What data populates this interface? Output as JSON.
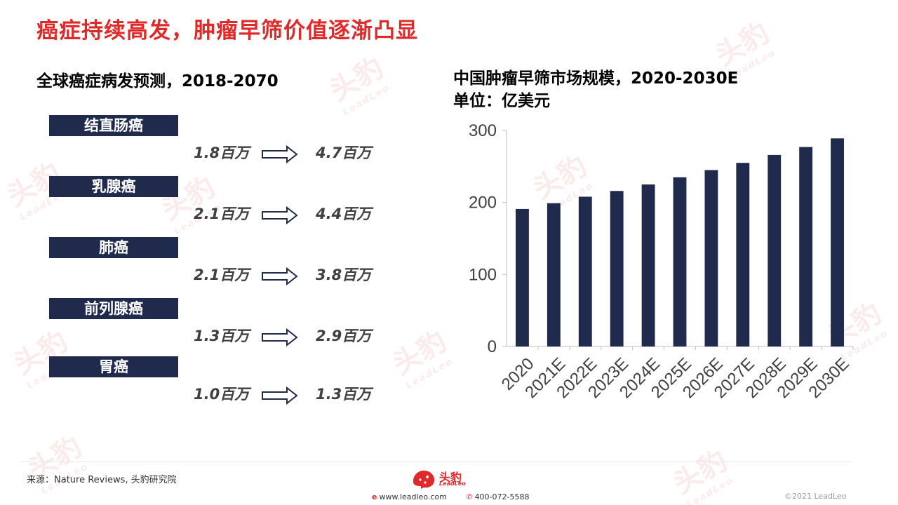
{
  "page": {
    "title": "癌症持续高发，肿瘤早筛价值逐渐凸显"
  },
  "left": {
    "title": "全球癌症病发预测，2018-2070",
    "rows": [
      {
        "label": "结直肠癌",
        "from": "1.8百万",
        "to": "4.7百万"
      },
      {
        "label": "乳腺癌",
        "from": "2.1百万",
        "to": "4.4百万"
      },
      {
        "label": "肺癌",
        "from": "2.1百万",
        "to": "3.8百万"
      },
      {
        "label": "前列腺癌",
        "from": "1.3百万",
        "to": "2.9百万"
      },
      {
        "label": "胃癌",
        "from": "1.0百万",
        "to": "1.3百万"
      }
    ]
  },
  "right": {
    "title_line1": "中国肿瘤早筛市场规模，2020-2030E",
    "title_line2": "单位：亿美元"
  },
  "chart_data": {
    "type": "bar",
    "title": "中国肿瘤早筛市场规模，2020-2030E",
    "ylabel": "单位：亿美元",
    "categories": [
      "2020",
      "2021E",
      "2022E",
      "2023E",
      "2024E",
      "2025E",
      "2026E",
      "2027E",
      "2028E",
      "2029E",
      "2030E"
    ],
    "values": [
      191,
      199,
      208,
      216,
      225,
      235,
      245,
      255,
      266,
      277,
      289
    ],
    "ylim": [
      0,
      300
    ],
    "yticks": [
      0,
      100,
      200,
      300
    ],
    "bar_color": "#1f2a4c",
    "grid": false
  },
  "footer": {
    "source": "来源：Nature Reviews,   头豹研究院",
    "logo_text": "头豹",
    "logo_sub": "LeadLeo",
    "website": "www.leadleo.com",
    "phone": "400-072-5588",
    "copyright": "©2021 LeadLeo"
  },
  "colors": {
    "accent": "#e02a2a",
    "navy": "#1f2a4c"
  }
}
